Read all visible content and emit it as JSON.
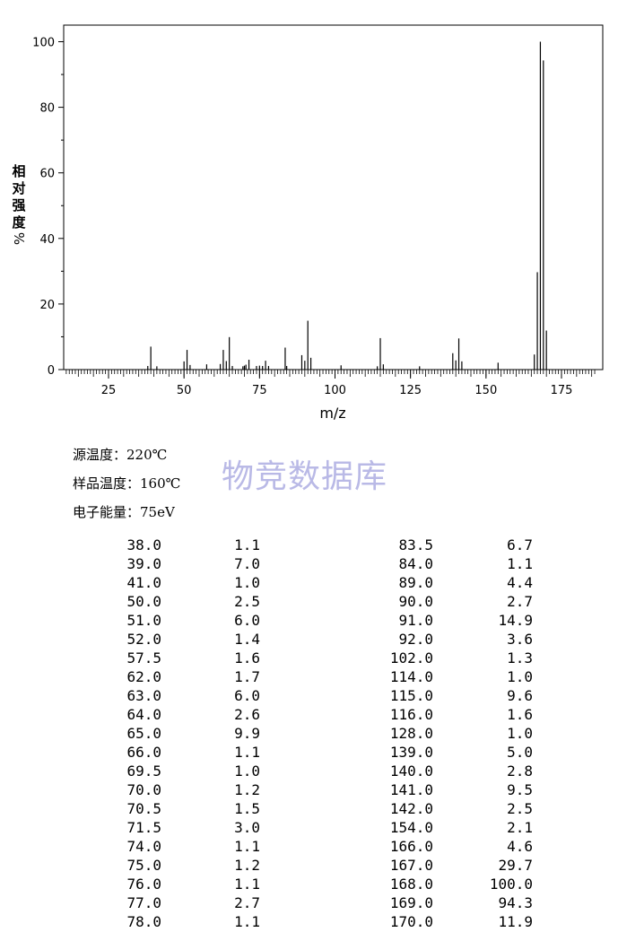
{
  "chart_data": {
    "type": "bar",
    "xlabel": "m/z",
    "ylabel": "相对强度%",
    "xlim": [
      10,
      187
    ],
    "ylim": [
      0,
      105
    ],
    "xticks": [
      25,
      50,
      75,
      100,
      125,
      150,
      175
    ],
    "yticks": [
      0,
      20,
      40,
      60,
      80,
      100
    ],
    "peaks": [
      {
        "mz": 38.0,
        "intensity": 1.1
      },
      {
        "mz": 39.0,
        "intensity": 7.0
      },
      {
        "mz": 41.0,
        "intensity": 1.0
      },
      {
        "mz": 50.0,
        "intensity": 2.5
      },
      {
        "mz": 51.0,
        "intensity": 6.0
      },
      {
        "mz": 52.0,
        "intensity": 1.4
      },
      {
        "mz": 57.5,
        "intensity": 1.6
      },
      {
        "mz": 62.0,
        "intensity": 1.7
      },
      {
        "mz": 63.0,
        "intensity": 6.0
      },
      {
        "mz": 64.0,
        "intensity": 2.6
      },
      {
        "mz": 65.0,
        "intensity": 9.9
      },
      {
        "mz": 66.0,
        "intensity": 1.1
      },
      {
        "mz": 69.5,
        "intensity": 1.0
      },
      {
        "mz": 70.0,
        "intensity": 1.2
      },
      {
        "mz": 70.5,
        "intensity": 1.5
      },
      {
        "mz": 71.5,
        "intensity": 3.0
      },
      {
        "mz": 74.0,
        "intensity": 1.1
      },
      {
        "mz": 75.0,
        "intensity": 1.2
      },
      {
        "mz": 76.0,
        "intensity": 1.1
      },
      {
        "mz": 77.0,
        "intensity": 2.7
      },
      {
        "mz": 78.0,
        "intensity": 1.1
      },
      {
        "mz": 83.5,
        "intensity": 6.7
      },
      {
        "mz": 84.0,
        "intensity": 1.1
      },
      {
        "mz": 89.0,
        "intensity": 4.4
      },
      {
        "mz": 90.0,
        "intensity": 2.7
      },
      {
        "mz": 91.0,
        "intensity": 14.9
      },
      {
        "mz": 92.0,
        "intensity": 3.6
      },
      {
        "mz": 102.0,
        "intensity": 1.3
      },
      {
        "mz": 114.0,
        "intensity": 1.0
      },
      {
        "mz": 115.0,
        "intensity": 9.6
      },
      {
        "mz": 116.0,
        "intensity": 1.6
      },
      {
        "mz": 128.0,
        "intensity": 1.0
      },
      {
        "mz": 139.0,
        "intensity": 5.0
      },
      {
        "mz": 140.0,
        "intensity": 2.8
      },
      {
        "mz": 141.0,
        "intensity": 9.5
      },
      {
        "mz": 142.0,
        "intensity": 2.5
      },
      {
        "mz": 154.0,
        "intensity": 2.1
      },
      {
        "mz": 166.0,
        "intensity": 4.6
      },
      {
        "mz": 167.0,
        "intensity": 29.7
      },
      {
        "mz": 168.0,
        "intensity": 100.0
      },
      {
        "mz": 169.0,
        "intensity": 94.3
      },
      {
        "mz": 170.0,
        "intensity": 11.9
      }
    ]
  },
  "info": {
    "source_temp": "源温度：220℃",
    "sample_temp": "样品温度：160℃",
    "electron_energy": "电子能量：75eV"
  },
  "watermark": "物竞数据库",
  "table": {
    "left": [
      [
        "38.0",
        "1.1"
      ],
      [
        "39.0",
        "7.0"
      ],
      [
        "41.0",
        "1.0"
      ],
      [
        "50.0",
        "2.5"
      ],
      [
        "51.0",
        "6.0"
      ],
      [
        "52.0",
        "1.4"
      ],
      [
        "57.5",
        "1.6"
      ],
      [
        "62.0",
        "1.7"
      ],
      [
        "63.0",
        "6.0"
      ],
      [
        "64.0",
        "2.6"
      ],
      [
        "65.0",
        "9.9"
      ],
      [
        "66.0",
        "1.1"
      ],
      [
        "69.5",
        "1.0"
      ],
      [
        "70.0",
        "1.2"
      ],
      [
        "70.5",
        "1.5"
      ],
      [
        "71.5",
        "3.0"
      ],
      [
        "74.0",
        "1.1"
      ],
      [
        "75.0",
        "1.2"
      ],
      [
        "76.0",
        "1.1"
      ],
      [
        "77.0",
        "2.7"
      ],
      [
        "78.0",
        "1.1"
      ]
    ],
    "right": [
      [
        "83.5",
        "6.7"
      ],
      [
        "84.0",
        "1.1"
      ],
      [
        "89.0",
        "4.4"
      ],
      [
        "90.0",
        "2.7"
      ],
      [
        "91.0",
        "14.9"
      ],
      [
        "92.0",
        "3.6"
      ],
      [
        "102.0",
        "1.3"
      ],
      [
        "114.0",
        "1.0"
      ],
      [
        "115.0",
        "9.6"
      ],
      [
        "116.0",
        "1.6"
      ],
      [
        "128.0",
        "1.0"
      ],
      [
        "139.0",
        "5.0"
      ],
      [
        "140.0",
        "2.8"
      ],
      [
        "141.0",
        "9.5"
      ],
      [
        "142.0",
        "2.5"
      ],
      [
        "154.0",
        "2.1"
      ],
      [
        "166.0",
        "4.6"
      ],
      [
        "167.0",
        "29.7"
      ],
      [
        "168.0",
        "100.0"
      ],
      [
        "169.0",
        "94.3"
      ],
      [
        "170.0",
        "11.9"
      ]
    ]
  }
}
